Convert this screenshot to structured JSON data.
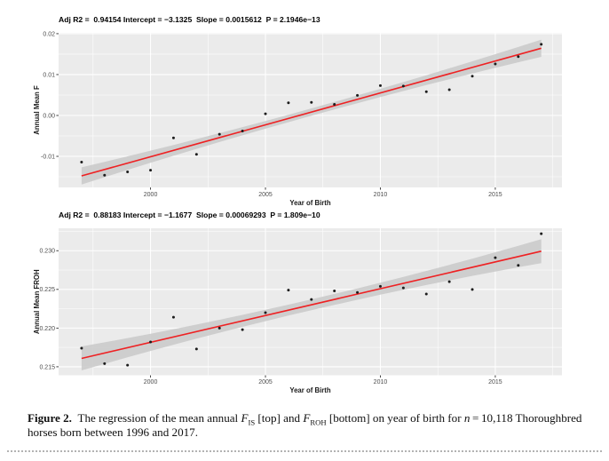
{
  "figure": {
    "caption": {
      "label": "Figure 2.",
      "segments": [
        {
          "t": " The regression of the mean annual "
        },
        {
          "t": "F",
          "i": true
        },
        {
          "t": "IS",
          "sub": true
        },
        {
          "t": " [top] and "
        },
        {
          "t": "F",
          "i": true
        },
        {
          "t": "ROH",
          "sub": true
        },
        {
          "t": " [bottom] on year of birth for "
        },
        {
          "t": "n",
          "i": true
        },
        {
          "t": " = 10,118 Thoroughbred horses born between 1996 and 2017."
        }
      ]
    }
  },
  "chart_data": [
    {
      "type": "scatter",
      "title": "Adj R2 =  0.94154 Intercept = −3.1325  Slope = 0.0015612  P = 2.1946e−13",
      "xlabel": "Year of Birth",
      "ylabel": "Annual Mean F",
      "x": [
        1997,
        1998,
        1999,
        2000,
        2001,
        2002,
        2003,
        2004,
        2005,
        2006,
        2007,
        2008,
        2009,
        2010,
        2011,
        2012,
        2013,
        2014,
        2015,
        2016,
        2017
      ],
      "y": [
        -0.0114,
        -0.0146,
        -0.0138,
        -0.0134,
        -0.0055,
        -0.0095,
        -0.0046,
        -0.0038,
        0.0004,
        0.0031,
        0.0032,
        0.0027,
        0.0049,
        0.0073,
        0.0072,
        0.0058,
        0.0063,
        0.0096,
        0.0126,
        0.0144,
        0.0174
      ],
      "regression": {
        "intercept": -3.1325,
        "slope": 0.0015612,
        "x_start": 1997,
        "x_end": 2017
      },
      "ci_halfwidth": {
        "mid": 0.0009,
        "end": 0.0021
      },
      "xlim": [
        1996.0,
        2017.9
      ],
      "ylim": [
        -0.0176,
        0.0202
      ],
      "xticks": {
        "values": [
          2000,
          2005,
          2010,
          2015
        ],
        "labels": [
          "2000",
          "2005",
          "2010",
          "2015"
        ]
      },
      "yticks": {
        "values": [
          -0.01,
          0.0,
          0.01,
          0.02
        ],
        "labels": [
          "-0.01",
          "0.00",
          "0.01",
          "0.02"
        ]
      },
      "xminor": [
        1997.5,
        2002.5,
        2007.5,
        2012.5,
        2017.5
      ],
      "yminor": [
        -0.015,
        -0.005,
        0.005,
        0.015
      ],
      "legend": "none",
      "grid": "on",
      "colors": {
        "panel": "#ebebeb",
        "grid": "#ffffff",
        "line": "#ee2123",
        "ribbon": "#cbcbcb",
        "point": "#1c1c1c"
      }
    },
    {
      "type": "scatter",
      "title": "Adj R2 =  0.88183 Intercept = −1.1677  Slope = 0.00069293  P = 1.809e−10",
      "xlabel": "Year of Birth",
      "ylabel": "Annual Mean FROH",
      "x": [
        1997,
        1998,
        1999,
        2000,
        2001,
        2002,
        2003,
        2004,
        2005,
        2006,
        2007,
        2008,
        2009,
        2010,
        2011,
        2012,
        2013,
        2014,
        2015,
        2016,
        2017
      ],
      "y": [
        0.2174,
        0.2154,
        0.2152,
        0.2182,
        0.2214,
        0.2173,
        0.22,
        0.2198,
        0.222,
        0.2249,
        0.2237,
        0.2248,
        0.2246,
        0.2254,
        0.2252,
        0.2244,
        0.226,
        0.225,
        0.2291,
        0.2281,
        0.2322
      ],
      "regression": {
        "intercept": -1.1677,
        "slope": 0.00069293,
        "x_start": 1997,
        "x_end": 2017
      },
      "ci_halfwidth": {
        "mid": 0.0007,
        "end": 0.00155
      },
      "xlim": [
        1996.0,
        2017.9
      ],
      "ylim": [
        0.2139,
        0.2329
      ],
      "xticks": {
        "values": [
          2000,
          2005,
          2010,
          2015
        ],
        "labels": [
          "2000",
          "2005",
          "2010",
          "2015"
        ]
      },
      "yticks": {
        "values": [
          0.215,
          0.22,
          0.225,
          0.23
        ],
        "labels": [
          "0.215",
          "0.220",
          "0.225",
          "0.230"
        ]
      },
      "xminor": [
        1997.5,
        2002.5,
        2007.5,
        2012.5,
        2017.5
      ],
      "yminor": [
        0.2175,
        0.2225,
        0.2275,
        0.2325
      ],
      "legend": "none",
      "grid": "on",
      "colors": {
        "panel": "#ebebeb",
        "grid": "#ffffff",
        "line": "#ee2123",
        "ribbon": "#cbcbcb",
        "point": "#1c1c1c"
      }
    }
  ]
}
